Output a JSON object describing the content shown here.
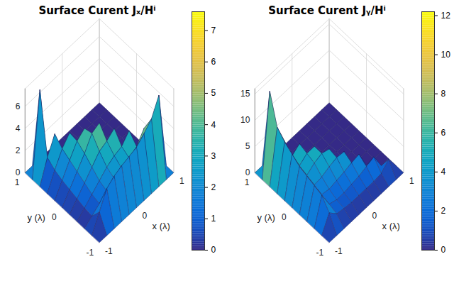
{
  "chart_data": [
    {
      "type": "surface",
      "title": "Surface Curent Jₓ/Hⁱ",
      "x_label": "x (λ)",
      "y_label": "y (λ)",
      "x": [
        -1,
        -0.8,
        -0.6,
        -0.4,
        -0.2,
        0,
        0.2,
        0.4,
        0.6,
        0.8,
        1
      ],
      "y": [
        -1,
        -0.8,
        -0.6,
        -0.4,
        -0.2,
        0,
        0.2,
        0.4,
        0.6,
        0.8,
        1
      ],
      "z": [
        [
          0,
          0,
          0,
          0,
          0,
          0,
          0,
          0,
          0,
          0,
          0
        ],
        [
          0,
          1.5,
          3.0,
          3.5,
          3.8,
          4.0,
          4.2,
          4.8,
          5.5,
          7.0,
          0
        ],
        [
          0,
          0.5,
          1.0,
          1.5,
          2.0,
          2.3,
          2.6,
          3.0,
          4.0,
          0,
          0
        ],
        [
          0,
          0.6,
          1.2,
          1.8,
          2.4,
          2.8,
          3.0,
          3.8,
          0,
          0,
          0
        ],
        [
          0,
          0.8,
          1.6,
          2.4,
          3.2,
          3.5,
          4.0,
          0,
          0,
          0,
          0
        ],
        [
          0,
          1.0,
          2.0,
          3.0,
          4.2,
          4.5,
          0,
          0,
          0,
          0,
          0
        ],
        [
          0,
          1.2,
          2.4,
          3.5,
          4.0,
          0,
          0,
          0,
          0,
          0,
          0
        ],
        [
          0,
          1.5,
          2.8,
          3.6,
          0,
          0,
          0,
          0,
          0,
          0,
          0
        ],
        [
          0,
          2.0,
          3.5,
          0,
          0,
          0,
          0,
          0,
          0,
          0,
          0
        ],
        [
          0,
          7.5,
          0,
          0,
          0,
          0,
          0,
          0,
          0,
          0,
          0
        ],
        [
          0,
          0,
          0,
          0,
          0,
          0,
          0,
          0,
          0,
          0,
          0
        ]
      ],
      "xlim": [
        -1,
        1
      ],
      "ylim": [
        -1,
        1
      ],
      "zlim": [
        0,
        7.6
      ],
      "xticks": [
        -1,
        0,
        1
      ],
      "yticks": [
        -1,
        0,
        1
      ],
      "zticks": [
        0,
        2,
        4,
        6
      ],
      "colorbar": {
        "range": [
          0,
          7.6
        ],
        "ticks": [
          0,
          1,
          2,
          3,
          4,
          5,
          6,
          7
        ]
      },
      "grid": true
    },
    {
      "type": "surface",
      "title": "Surface Curent Jᵧ/Hⁱ",
      "x_label": "x (λ)",
      "y_label": "y (λ)",
      "x": [
        -1,
        -0.8,
        -0.6,
        -0.4,
        -0.2,
        0,
        0.2,
        0.4,
        0.6,
        0.8,
        1
      ],
      "y": [
        -1,
        -0.8,
        -0.6,
        -0.4,
        -0.2,
        0,
        0.2,
        0.4,
        0.6,
        0.8,
        1
      ],
      "z": [
        [
          0,
          0,
          0,
          0,
          0,
          0,
          0,
          0,
          0,
          0,
          0
        ],
        [
          0,
          3.0,
          1.5,
          1.2,
          1.0,
          1.0,
          1.0,
          1.0,
          1.2,
          2.5,
          0
        ],
        [
          0,
          5.0,
          2.0,
          1.5,
          1.5,
          1.8,
          2.0,
          2.5,
          3.0,
          0,
          0
        ],
        [
          0,
          5.5,
          2.5,
          2.2,
          2.5,
          2.8,
          3.2,
          3.5,
          0,
          0,
          0
        ],
        [
          0,
          6.0,
          3.0,
          3.2,
          3.8,
          4.2,
          4.0,
          0,
          0,
          0,
          0
        ],
        [
          0,
          6.5,
          3.5,
          4.5,
          5.0,
          4.5,
          0,
          0,
          0,
          0,
          0
        ],
        [
          0,
          7.5,
          4.0,
          5.0,
          5.0,
          0,
          0,
          0,
          0,
          0,
          0
        ],
        [
          0,
          8.5,
          4.5,
          5.5,
          0,
          0,
          0,
          0,
          0,
          0,
          0
        ],
        [
          0,
          10.0,
          6.0,
          0,
          0,
          0,
          0,
          0,
          0,
          0,
          0
        ],
        [
          0,
          15.5,
          0,
          0,
          0,
          0,
          0,
          0,
          0,
          0,
          0
        ],
        [
          0,
          0,
          0,
          0,
          0,
          0,
          0,
          0,
          0,
          0,
          0
        ]
      ],
      "xlim": [
        -1,
        1
      ],
      "ylim": [
        -1,
        1
      ],
      "zlim": [
        0,
        16
      ],
      "xticks": [
        -1,
        0,
        1
      ],
      "yticks": [
        -1,
        0,
        1
      ],
      "zticks": [
        0,
        5,
        10,
        15
      ],
      "colorbar": {
        "range": [
          0,
          12.2
        ],
        "ticks": [
          0,
          2,
          4,
          6,
          8,
          10,
          12
        ]
      },
      "grid": true
    }
  ]
}
